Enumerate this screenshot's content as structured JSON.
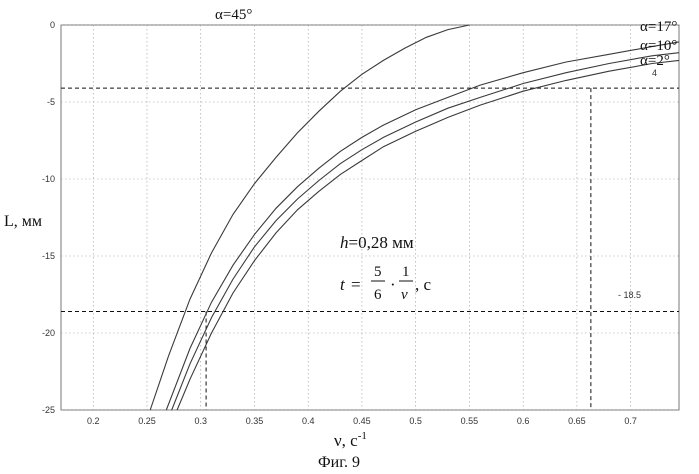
{
  "chart_data": {
    "type": "line",
    "xlabel_main": "ν, с",
    "xlabel_sup": "-1",
    "ylabel": "L, мм",
    "caption": "Фиг. 9",
    "xlim": [
      0.17,
      0.745
    ],
    "ylim": [
      -25,
      0
    ],
    "xticks": [
      {
        "value": 0.2,
        "label": "0.2"
      },
      {
        "value": 0.25,
        "label": "0.25"
      },
      {
        "value": 0.3,
        "label": "0.3"
      },
      {
        "value": 0.35,
        "label": "0.35"
      },
      {
        "value": 0.4,
        "label": "0.4"
      },
      {
        "value": 0.45,
        "label": "0.45"
      },
      {
        "value": 0.5,
        "label": "0.5"
      },
      {
        "value": 0.55,
        "label": "0.55"
      },
      {
        "value": 0.6,
        "label": "0.6"
      },
      {
        "value": 0.65,
        "label": "0.65"
      },
      {
        "value": 0.7,
        "label": "0.7"
      }
    ],
    "yticks": [
      {
        "value": 0,
        "label": "0"
      },
      {
        "value": -5,
        "label": "-5"
      },
      {
        "value": -10,
        "label": "-10"
      },
      {
        "value": -15,
        "label": "-15"
      },
      {
        "value": -20,
        "label": "-20"
      },
      {
        "value": -25,
        "label": "-25"
      }
    ],
    "grid": true,
    "series": [
      {
        "name": "α=45°",
        "x": [
          0.253,
          0.27,
          0.29,
          0.31,
          0.33,
          0.35,
          0.37,
          0.39,
          0.41,
          0.43,
          0.45,
          0.47,
          0.49,
          0.51,
          0.53,
          0.55
        ],
        "y": [
          -25,
          -21.5,
          -17.8,
          -14.8,
          -12.3,
          -10.3,
          -8.6,
          -7.0,
          -5.6,
          -4.3,
          -3.2,
          -2.3,
          -1.5,
          -0.8,
          -0.3,
          0
        ]
      },
      {
        "name": "α=17°",
        "x": [
          0.268,
          0.29,
          0.31,
          0.33,
          0.35,
          0.37,
          0.39,
          0.41,
          0.43,
          0.45,
          0.47,
          0.5,
          0.53,
          0.56,
          0.6,
          0.64,
          0.68,
          0.72,
          0.745
        ],
        "y": [
          -25,
          -21,
          -18,
          -15.6,
          -13.6,
          -11.9,
          -10.5,
          -9.3,
          -8.2,
          -7.3,
          -6.5,
          -5.5,
          -4.7,
          -3.9,
          -3.1,
          -2.4,
          -1.9,
          -1.4,
          -1.1
        ]
      },
      {
        "name": "α=10°",
        "x": [
          0.273,
          0.29,
          0.31,
          0.33,
          0.35,
          0.37,
          0.39,
          0.41,
          0.43,
          0.45,
          0.47,
          0.5,
          0.53,
          0.56,
          0.6,
          0.64,
          0.68,
          0.72,
          0.745
        ],
        "y": [
          -25,
          -22,
          -19,
          -16.5,
          -14.4,
          -12.7,
          -11.3,
          -10.1,
          -9.0,
          -8.1,
          -7.3,
          -6.3,
          -5.4,
          -4.7,
          -3.8,
          -3.1,
          -2.5,
          -2.0,
          -1.8
        ]
      },
      {
        "name": "α=2°",
        "x": [
          0.278,
          0.29,
          0.31,
          0.33,
          0.35,
          0.37,
          0.39,
          0.41,
          0.43,
          0.45,
          0.47,
          0.5,
          0.53,
          0.56,
          0.6,
          0.64,
          0.68,
          0.72,
          0.745
        ],
        "y": [
          -25,
          -23,
          -20,
          -17.4,
          -15.3,
          -13.5,
          -12.0,
          -10.8,
          -9.7,
          -8.8,
          -7.9,
          -6.9,
          -6.0,
          -5.2,
          -4.3,
          -3.6,
          -3.0,
          -2.5,
          -2.3
        ]
      }
    ],
    "series_label_extra": "4",
    "reference_lines": {
      "horizontal": [
        -4.1,
        -18.6
      ],
      "vertical": [
        0.305,
        0.663
      ],
      "annotation": "- 18.5",
      "annotation_value": -18.6
    },
    "annotation_formula": {
      "h_var": "h",
      "h_rest": "=0,28 мм",
      "t_var": "t",
      "t_eq": "=",
      "frac1_num": "5",
      "frac1_den": "6",
      "dot": "·",
      "frac2_num": "1",
      "frac2_den": "ν",
      "t_unit": ", с"
    }
  }
}
